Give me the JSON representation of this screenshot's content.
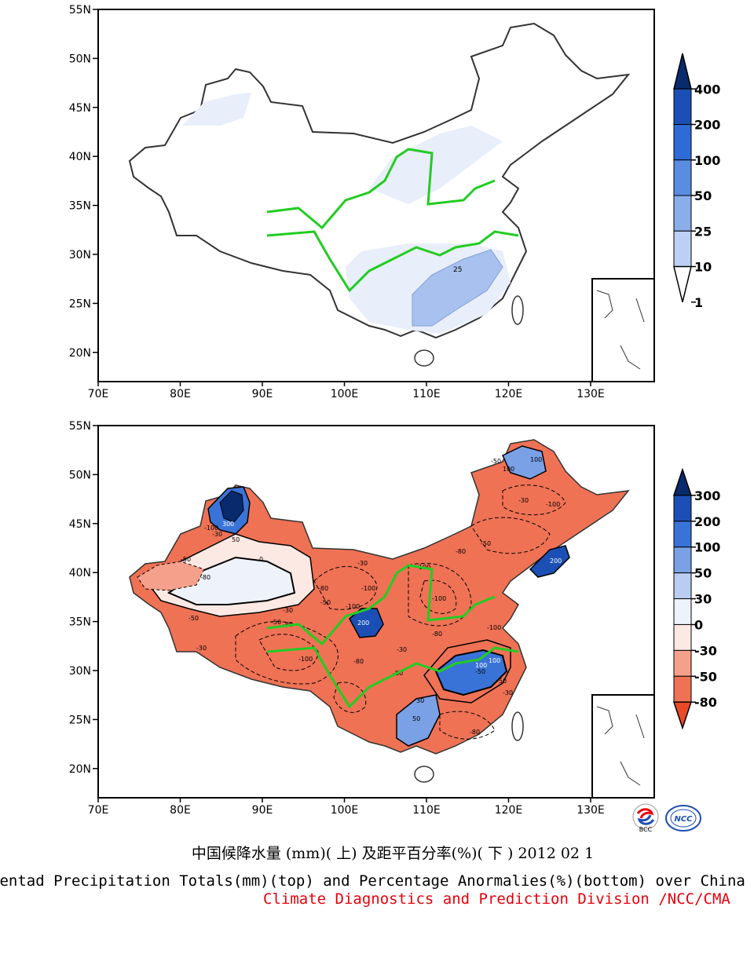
{
  "top_map": {
    "lat_labels": [
      "55N",
      "50N",
      "45N",
      "40N",
      "35N",
      "30N",
      "25N",
      "20N"
    ],
    "lon_labels": [
      "70E",
      "80E",
      "90E",
      "100E",
      "110E",
      "120E",
      "130E"
    ],
    "colorbar_labels": [
      "400",
      "200",
      "100",
      "50",
      "25",
      "10",
      "1"
    ],
    "colorbar_colors": [
      "#0a2a6e",
      "#1c4fb5",
      "#2f6bd6",
      "#5a8de2",
      "#8aaeea",
      "#bcd0f3",
      "#ffffff"
    ],
    "contour_label": "25"
  },
  "bottom_map": {
    "lat_labels": [
      "55N",
      "50N",
      "45N",
      "40N",
      "35N",
      "30N",
      "25N",
      "20N"
    ],
    "lon_labels": [
      "70E",
      "80E",
      "90E",
      "100E",
      "110E",
      "120E",
      "130E"
    ],
    "colorbar_labels": [
      "300",
      "200",
      "100",
      "50",
      "30",
      "0",
      "-30",
      "-50",
      "-80"
    ],
    "colorbar_colors": [
      "#0a2a6e",
      "#1c4fb5",
      "#3a73d8",
      "#7aa0e6",
      "#b9cdf1",
      "#eef2fb",
      "#fde9e4",
      "#f5a08a",
      "#ef7255",
      "#e84a28"
    ],
    "contour_labels": [
      "-100",
      "300",
      "-30",
      "50",
      "-50",
      "-80",
      "0",
      "-30",
      "-50",
      "-100",
      "-80",
      "200",
      "-100",
      "-50",
      "-80",
      "-30",
      "100",
      "200",
      "100",
      "-80",
      "-100",
      "-50",
      "-80",
      "-100",
      "30",
      "50",
      "-80",
      "-30",
      "-50",
      "-30",
      "-50",
      "-80",
      "100",
      "-100",
      "-50",
      "-30",
      "-100",
      "-50",
      "-30",
      "100",
      "-100",
      "-80"
    ]
  },
  "title_cn": "中国候降水量 (mm)( 上) 及距平百分率(%)( 下 ) 2012 02 1",
  "title_en": "Pentad Precipitation Totals(mm)(top) and Percentage Anormalies(%)(bottom) over China",
  "credit": "Climate Diagnostics and Prediction Division /NCC/CMA",
  "logos": {
    "bcc": "BCC",
    "ncc": "NCC"
  }
}
